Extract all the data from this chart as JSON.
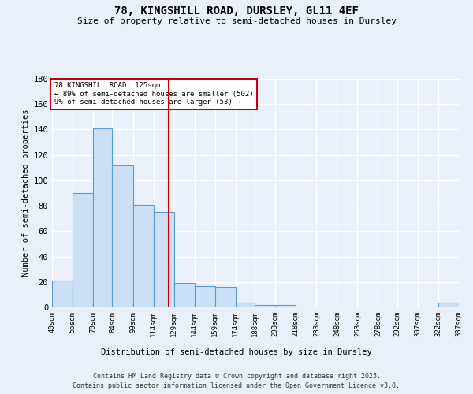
{
  "title": "78, KINGSHILL ROAD, DURSLEY, GL11 4EF",
  "subtitle": "Size of property relative to semi-detached houses in Dursley",
  "xlabel": "Distribution of semi-detached houses by size in Dursley",
  "ylabel": "Number of semi-detached properties",
  "annotation_line1": "78 KINGSHILL ROAD: 125sqm",
  "annotation_line2": "← 89% of semi-detached houses are smaller (502)",
  "annotation_line3": "9% of semi-detached houses are larger (53) →",
  "property_size": 125,
  "bins": [
    40,
    55,
    70,
    84,
    99,
    114,
    129,
    144,
    159,
    174,
    188,
    203,
    218,
    233,
    248,
    263,
    278,
    292,
    307,
    322,
    337
  ],
  "bin_labels": [
    "40sqm",
    "55sqm",
    "70sqm",
    "84sqm",
    "99sqm",
    "114sqm",
    "129sqm",
    "144sqm",
    "159sqm",
    "174sqm",
    "188sqm",
    "203sqm",
    "218sqm",
    "233sqm",
    "248sqm",
    "263sqm",
    "278sqm",
    "292sqm",
    "307sqm",
    "322sqm",
    "337sqm"
  ],
  "values": [
    21,
    90,
    141,
    112,
    81,
    75,
    19,
    17,
    16,
    4,
    2,
    2,
    0,
    0,
    0,
    0,
    0,
    0,
    0,
    4,
    0
  ],
  "bar_color": "#cce0f5",
  "bar_edge_color": "#5b9bd5",
  "marker_color": "#cc0000",
  "bg_color": "#eaf0fb",
  "grid_color": "#ffffff",
  "footer_line1": "Contains HM Land Registry data © Crown copyright and database right 2025.",
  "footer_line2": "Contains public sector information licensed under the Open Government Licence v3.0.",
  "ylim": [
    0,
    180
  ],
  "yticks": [
    0,
    20,
    40,
    60,
    80,
    100,
    120,
    140,
    160,
    180
  ]
}
